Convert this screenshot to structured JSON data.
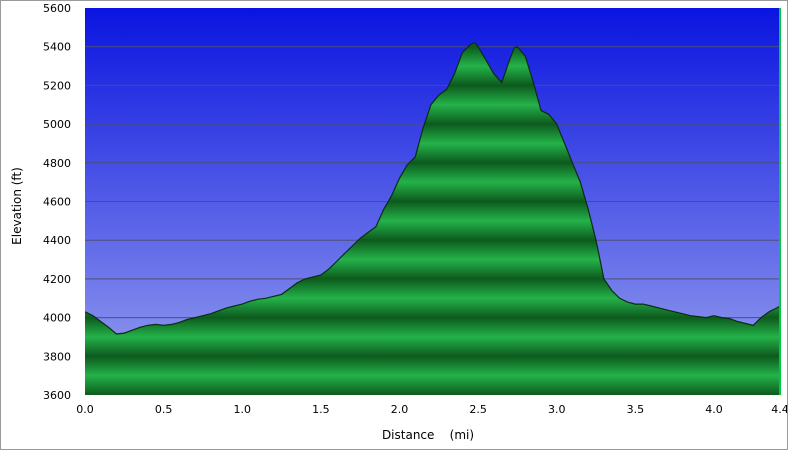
{
  "chart_data": {
    "type": "area",
    "title": "",
    "xlabel": "Distance    (mi)",
    "ylabel": "Elevation (ft)",
    "xlim": [
      0,
      4.42
    ],
    "ylim": [
      3600,
      5600
    ],
    "x_ticks": [
      0.0,
      0.5,
      1.0,
      1.5,
      2.0,
      2.5,
      3.0,
      3.5,
      4.0,
      4.42
    ],
    "x_tick_labels": [
      "0.0",
      "0.5",
      "1.0",
      "1.5",
      "2.0",
      "2.5",
      "3.0",
      "3.5",
      "4.0",
      "4.4"
    ],
    "y_ticks": [
      3600,
      3800,
      4000,
      4200,
      4400,
      4600,
      4800,
      5000,
      5200,
      5400,
      5600
    ],
    "y_tick_labels": [
      "3600",
      "3800",
      "4000",
      "4200",
      "4400",
      "4600",
      "4800",
      "5000",
      "5200",
      "5400",
      "5600"
    ],
    "grid": true,
    "legend": "none",
    "colors": {
      "sky_top": "#0a14e0",
      "sky_bottom": "#9aa3ee",
      "fill_dark": "#0d5a1d",
      "fill_light": "#24b24a",
      "outline": "#0b2d10",
      "grid": "#4a4f7a",
      "right_edge": "#00c840"
    },
    "series": [
      {
        "x": [
          0.0,
          0.05,
          0.1,
          0.15,
          0.2,
          0.25,
          0.3,
          0.35,
          0.4,
          0.45,
          0.5,
          0.55,
          0.6,
          0.65,
          0.7,
          0.75,
          0.8,
          0.85,
          0.9,
          0.95,
          1.0,
          1.05,
          1.1,
          1.15,
          1.2,
          1.25,
          1.3,
          1.35,
          1.4,
          1.45,
          1.5,
          1.55,
          1.6,
          1.65,
          1.7,
          1.75,
          1.8,
          1.85,
          1.9,
          1.95,
          2.0,
          2.05,
          2.1,
          2.15,
          2.2,
          2.25,
          2.3,
          2.35,
          2.4,
          2.45,
          2.48,
          2.5,
          2.55,
          2.6,
          2.65,
          2.7,
          2.73,
          2.75,
          2.8,
          2.85,
          2.9,
          2.95,
          3.0,
          3.05,
          3.1,
          3.15,
          3.2,
          3.25,
          3.3,
          3.35,
          3.4,
          3.45,
          3.5,
          3.55,
          3.6,
          3.65,
          3.7,
          3.75,
          3.8,
          3.85,
          3.9,
          3.95,
          4.0,
          4.05,
          4.1,
          4.15,
          4.2,
          4.25,
          4.3,
          4.35,
          4.4,
          4.42
        ],
        "y": [
          4030,
          4010,
          3980,
          3950,
          3915,
          3920,
          3935,
          3950,
          3960,
          3965,
          3960,
          3965,
          3975,
          3990,
          4000,
          4010,
          4020,
          4035,
          4050,
          4060,
          4070,
          4085,
          4095,
          4100,
          4110,
          4120,
          4150,
          4180,
          4200,
          4210,
          4220,
          4250,
          4290,
          4330,
          4370,
          4410,
          4440,
          4470,
          4560,
          4630,
          4720,
          4790,
          4830,
          4980,
          5100,
          5150,
          5180,
          5260,
          5370,
          5410,
          5420,
          5400,
          5330,
          5260,
          5215,
          5330,
          5395,
          5400,
          5350,
          5220,
          5070,
          5050,
          5000,
          4900,
          4800,
          4700,
          4560,
          4400,
          4200,
          4140,
          4100,
          4080,
          4070,
          4070,
          4060,
          4050,
          4040,
          4030,
          4020,
          4010,
          4005,
          4000,
          4010,
          4000,
          3995,
          3980,
          3970,
          3960,
          4000,
          4030,
          4050,
          4060
        ]
      }
    ]
  }
}
